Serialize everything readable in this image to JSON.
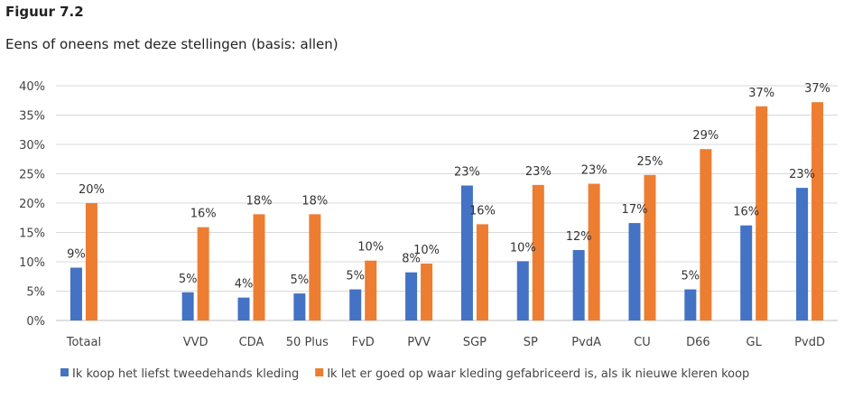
{
  "figure": {
    "label": "Figuur 7.2",
    "title": "Eens of oneens met deze stellingen (basis: allen)"
  },
  "chart_data": {
    "type": "bar",
    "title": "Eens of oneens met deze stellingen (basis: allen)",
    "xlabel": "",
    "ylabel": "",
    "ylim": [
      0,
      40
    ],
    "y_ticks": [
      "0%",
      "5%",
      "10%",
      "15%",
      "20%",
      "25%",
      "30%",
      "35%",
      "40%"
    ],
    "grid": true,
    "legend_position": "bottom",
    "categories": [
      "Totaal",
      "",
      "VVD",
      "CDA",
      "50 Plus",
      "FvD",
      "PVV",
      "SGP",
      "SP",
      "PvdA",
      "CU",
      "D66",
      "GL",
      "PvdD"
    ],
    "series": [
      {
        "name": "Ik koop het liefst tweedehands kleding",
        "color": "#4472C4",
        "values": [
          9,
          null,
          4.8,
          3.9,
          4.6,
          5.3,
          8.2,
          23.0,
          10.1,
          12.0,
          16.6,
          5.3,
          16.2,
          22.6
        ],
        "labels": [
          "9%",
          "",
          "5%",
          "4%",
          "5%",
          "5%",
          "8%",
          "23%",
          "10%",
          "12%",
          "17%",
          "5%",
          "16%",
          "23%"
        ]
      },
      {
        "name": "Ik let er goed op waar kleding gefabriceerd is, als ik nieuwe kleren koop",
        "color": "#ED7D31",
        "values": [
          20.0,
          null,
          15.9,
          18.1,
          18.1,
          10.2,
          9.7,
          16.4,
          23.1,
          23.3,
          24.8,
          29.2,
          36.5,
          37.2
        ],
        "labels": [
          "20%",
          "",
          "16%",
          "18%",
          "18%",
          "10%",
          "10%",
          "16%",
          "23%",
          "23%",
          "25%",
          "29%",
          "37%",
          "37%"
        ]
      }
    ]
  }
}
